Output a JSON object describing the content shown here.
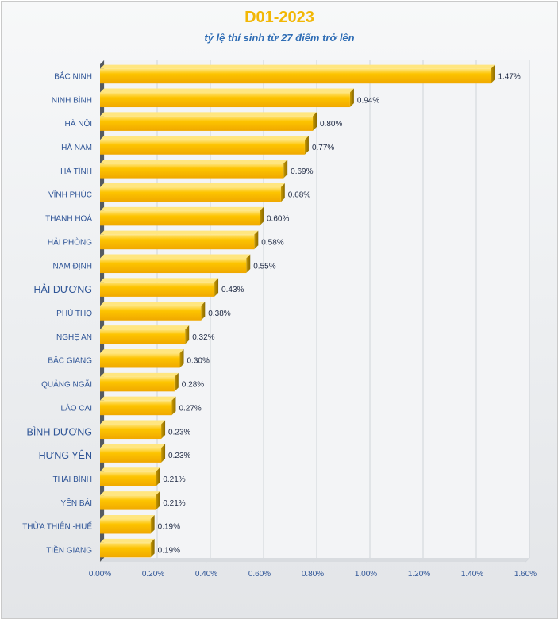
{
  "chart_data": {
    "type": "bar",
    "orientation": "horizontal",
    "title": "D01-2023",
    "subtitle": "tỷ lệ thí sinh từ 27 điểm trở lên",
    "xlabel": "",
    "ylabel": "",
    "xlim": [
      0,
      1.6
    ],
    "x_ticks": [
      "0.00%",
      "0.20%",
      "0.40%",
      "0.60%",
      "0.80%",
      "1.00%",
      "1.20%",
      "1.40%",
      "1.60%"
    ],
    "grid": true,
    "categories": [
      "BẮC NINH",
      "NINH BÌNH",
      "HÀ NỘI",
      "HÀ NAM",
      "HÀ TĨNH",
      "VĨNH PHÚC",
      "THANH HOÁ",
      "HẢI PHÒNG",
      "NAM ĐỊNH",
      "HẢI DƯƠNG",
      "PHÚ THỌ",
      "NGHỆ AN",
      "BẮC GIANG",
      "QUẢNG NGÃI",
      "LÀO CAI",
      "BÌNH DƯƠNG",
      "HƯNG YÊN",
      "THÁI BÌNH",
      "YÊN BÁI",
      "THỪA THIÊN -HUẾ",
      "TIỀN GIANG"
    ],
    "values": [
      1.47,
      0.94,
      0.8,
      0.77,
      0.69,
      0.68,
      0.6,
      0.58,
      0.55,
      0.43,
      0.38,
      0.32,
      0.3,
      0.28,
      0.27,
      0.23,
      0.23,
      0.21,
      0.21,
      0.19,
      0.19
    ],
    "value_labels": [
      "1.47%",
      "0.94%",
      "0.80%",
      "0.77%",
      "0.69%",
      "0.68%",
      "0.60%",
      "0.58%",
      "0.55%",
      "0.43%",
      "0.38%",
      "0.32%",
      "0.30%",
      "0.28%",
      "0.27%",
      "0.23%",
      "0.23%",
      "0.21%",
      "0.21%",
      "0.19%",
      "0.19%"
    ],
    "large_label_categories": [
      "HẢI DƯƠNG",
      "BÌNH DƯƠNG",
      "HƯNG YÊN"
    ],
    "colors": {
      "bar_main": "#fdc400",
      "bar_light": "#ffe680",
      "bar_shadow": "#b48a00",
      "title": "#f2b705",
      "subtitle": "#2f6db5",
      "category_text": "#2f5597",
      "grid": "#cfd3d8"
    }
  }
}
